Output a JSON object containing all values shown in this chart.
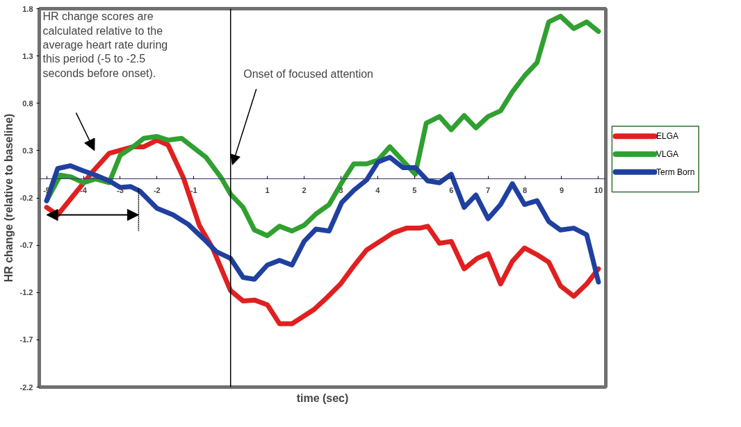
{
  "chart_data": {
    "type": "line",
    "xlabel": "time (sec)",
    "ylabel": "HR change (relative to baseline)",
    "xlim": [
      -5.2,
      10.2
    ],
    "ylim": [
      -2.2,
      1.8
    ],
    "xticks": [
      -5,
      -4,
      -3,
      -2,
      -1,
      {
        "value": 0,
        "label": null
      },
      1,
      2,
      3,
      4,
      5,
      6,
      7,
      8,
      9,
      10
    ],
    "yticks": [
      -2.2,
      -1.7,
      -1.2,
      -0.7,
      -0.2,
      0.3,
      0.8,
      1.3,
      1.8
    ],
    "grid": false,
    "legend": "right",
    "marker": "none",
    "line_style": "solid",
    "ref_lines": [
      {
        "axis": "x",
        "value": 0,
        "label": "Onset of focused attention",
        "color": "#000000"
      },
      {
        "axis": "x",
        "value": -2.5,
        "color": "#000000",
        "line_style": "dashed"
      }
    ],
    "annotations": [
      "HR change scores are calculated relative to the average heart rate during this period (-5 to -2.5 seconds before onset)."
    ],
    "series": [
      {
        "name": "ELGA",
        "color": "#e02020",
        "x": [
          -5.0,
          -4.7,
          -3.72,
          -3.3,
          -2.65,
          -2.36,
          -2.0,
          -1.7,
          -1.28,
          -0.85,
          -0.49,
          0.0,
          0.34,
          0.65,
          1.0,
          1.33,
          1.67,
          2.27,
          2.63,
          2.99,
          3.35,
          3.7,
          4.06,
          4.42,
          4.78,
          5.14,
          5.36,
          5.68,
          6.0,
          6.35,
          6.7,
          7.0,
          7.34,
          7.66,
          7.99,
          8.33,
          8.65,
          8.97,
          9.33,
          9.68,
          10.0
        ],
        "values": [
          -0.3,
          -0.38,
          0.09,
          0.27,
          0.34,
          0.34,
          0.41,
          0.36,
          0.01,
          -0.49,
          -0.73,
          -1.18,
          -1.29,
          -1.28,
          -1.33,
          -1.53,
          -1.53,
          -1.38,
          -1.25,
          -1.11,
          -0.92,
          -0.75,
          -0.66,
          -0.57,
          -0.52,
          -0.52,
          -0.5,
          -0.68,
          -0.66,
          -0.95,
          -0.84,
          -0.79,
          -1.11,
          -0.87,
          -0.73,
          -0.8,
          -0.88,
          -1.13,
          -1.24,
          -1.11,
          -0.95
        ]
      },
      {
        "name": "VLGA",
        "color": "#30a030",
        "x": [
          -5.0,
          -4.63,
          -4.33,
          -4.0,
          -3.67,
          -3.3,
          -3.0,
          -2.65,
          -2.36,
          -2.0,
          -1.7,
          -1.33,
          -0.67,
          -0.25,
          0.0,
          0.34,
          0.65,
          1.0,
          1.33,
          1.67,
          2.0,
          2.32,
          2.68,
          3.02,
          3.35,
          3.7,
          4.01,
          4.33,
          4.69,
          5.02,
          5.32,
          5.68,
          6.0,
          6.35,
          6.67,
          7.0,
          7.34,
          7.66,
          7.99,
          8.33,
          8.65,
          8.97,
          9.33,
          9.68,
          10.0
        ],
        "values": [
          -0.23,
          0.04,
          0.02,
          -0.04,
          0.0,
          -0.04,
          0.25,
          0.34,
          0.43,
          0.45,
          0.41,
          0.43,
          0.23,
          0.01,
          -0.16,
          -0.3,
          -0.54,
          -0.6,
          -0.5,
          -0.55,
          -0.49,
          -0.37,
          -0.27,
          -0.04,
          0.16,
          0.16,
          0.2,
          0.34,
          0.19,
          0.05,
          0.59,
          0.66,
          0.52,
          0.67,
          0.54,
          0.66,
          0.72,
          0.92,
          1.09,
          1.23,
          1.66,
          1.72,
          1.59,
          1.66,
          1.56
        ]
      },
      {
        "name": "Term Born",
        "color": "#2040a0",
        "x": [
          -5.0,
          -4.7,
          -4.35,
          -4.03,
          -3.67,
          -3.3,
          -3.0,
          -2.72,
          -2.46,
          -2.0,
          -1.56,
          -1.15,
          -0.74,
          -0.38,
          0.0,
          0.34,
          0.65,
          1.0,
          1.33,
          1.67,
          2.0,
          2.32,
          2.68,
          3.02,
          3.35,
          3.7,
          4.01,
          4.33,
          4.69,
          5.02,
          5.36,
          5.68,
          6.0,
          6.35,
          6.67,
          7.0,
          7.34,
          7.66,
          7.99,
          8.33,
          8.65,
          8.97,
          9.33,
          9.68,
          10.0
        ],
        "values": [
          -0.23,
          0.11,
          0.14,
          0.09,
          0.04,
          -0.02,
          -0.09,
          -0.08,
          -0.13,
          -0.31,
          -0.38,
          -0.48,
          -0.63,
          -0.77,
          -0.84,
          -1.04,
          -1.06,
          -0.91,
          -0.86,
          -0.91,
          -0.66,
          -0.53,
          -0.55,
          -0.25,
          -0.12,
          -0.01,
          0.18,
          0.23,
          0.12,
          0.12,
          -0.02,
          -0.04,
          0.05,
          -0.3,
          -0.17,
          -0.42,
          -0.27,
          -0.05,
          -0.27,
          -0.23,
          -0.45,
          -0.54,
          -0.52,
          -0.59,
          -1.09
        ]
      }
    ]
  }
}
